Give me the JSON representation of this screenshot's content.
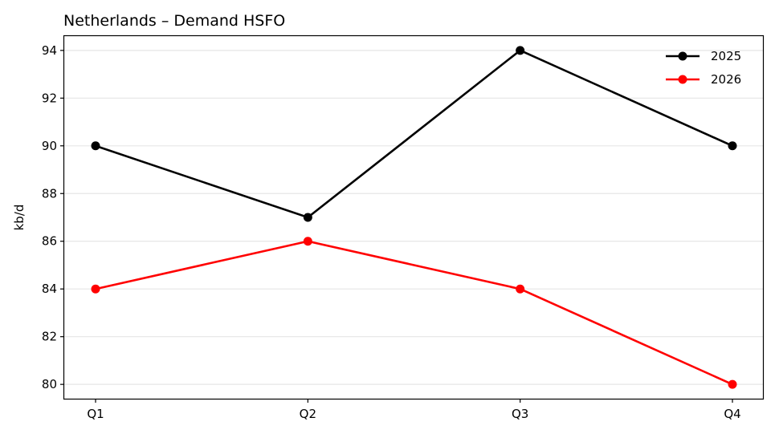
{
  "chart_data": {
    "type": "line",
    "title": "Netherlands – Demand HSFO",
    "xlabel": "",
    "ylabel": "kb/d",
    "categories": [
      "Q1",
      "Q2",
      "Q3",
      "Q4"
    ],
    "ylim": [
      79.4,
      94.6
    ],
    "yticks": [
      80,
      82,
      84,
      86,
      88,
      90,
      92,
      94
    ],
    "grid": "horizontal",
    "legend": "top-right",
    "series": [
      {
        "name": "2025",
        "color": "#000000",
        "values": [
          90,
          87,
          94,
          90
        ]
      },
      {
        "name": "2026",
        "color": "#ff0000",
        "values": [
          84,
          86,
          84,
          80
        ]
      }
    ]
  }
}
